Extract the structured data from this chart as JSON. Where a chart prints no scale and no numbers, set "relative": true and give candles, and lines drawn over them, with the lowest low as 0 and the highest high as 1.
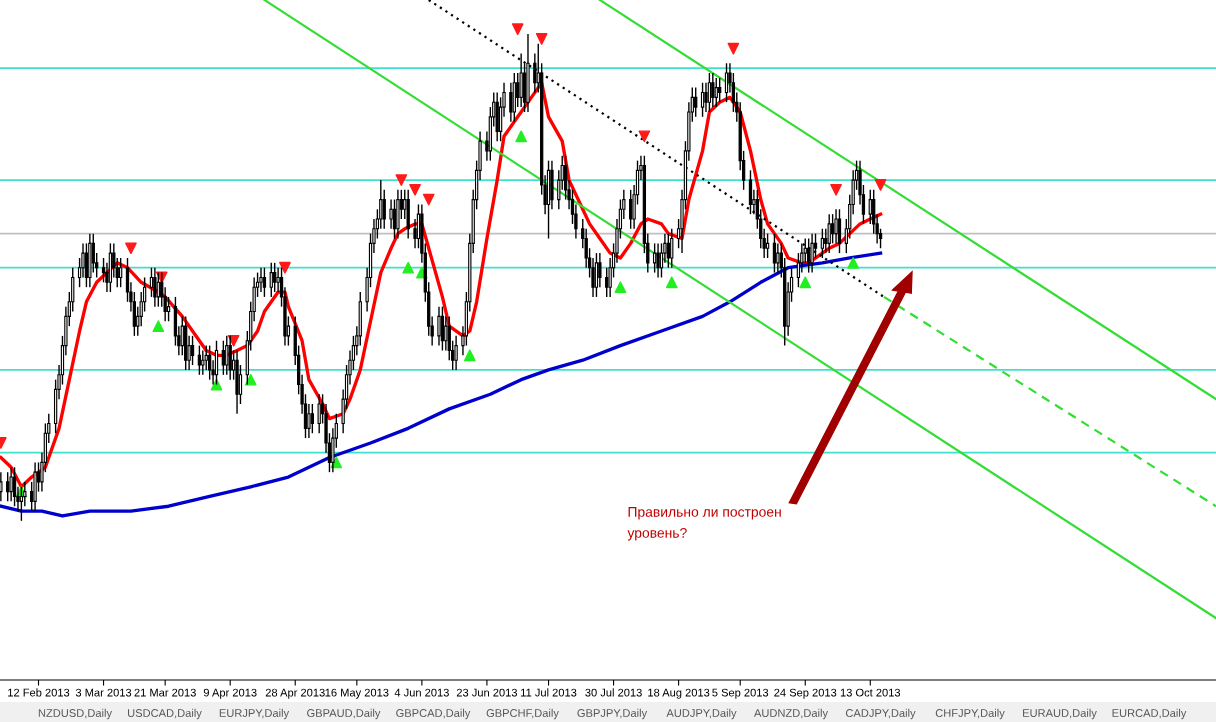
{
  "chart_data": {
    "type": "candlestick",
    "relative": true,
    "tick_labels": "x",
    "x": [
      "2013-02-01",
      "2013-02-03",
      "2013-02-04",
      "2013-02-05",
      "2013-02-06",
      "2013-02-07",
      "2013-02-08",
      "2013-02-10",
      "2013-02-11",
      "2013-02-12",
      "2013-02-13",
      "2013-02-14",
      "2013-02-15",
      "2013-02-17",
      "2013-02-18",
      "2013-02-19",
      "2013-02-20",
      "2013-02-21",
      "2013-02-22",
      "2013-02-24",
      "2013-02-25",
      "2013-02-26",
      "2013-02-27",
      "2013-02-28",
      "2013-03-01",
      "2013-03-03",
      "2013-03-04",
      "2013-03-05",
      "2013-03-06",
      "2013-03-07",
      "2013-03-08",
      "2013-03-10",
      "2013-03-11",
      "2013-03-12",
      "2013-03-13",
      "2013-03-14",
      "2013-03-15",
      "2013-03-17",
      "2013-03-18",
      "2013-03-19",
      "2013-03-20",
      "2013-03-21",
      "2013-03-22",
      "2013-03-24",
      "2013-03-25",
      "2013-03-26",
      "2013-03-27",
      "2013-03-28",
      "2013-03-29",
      "2013-03-31",
      "2013-04-01",
      "2013-04-02",
      "2013-04-03",
      "2013-04-04",
      "2013-04-05",
      "2013-04-07",
      "2013-04-08",
      "2013-04-09",
      "2013-04-10",
      "2013-04-11",
      "2013-04-12",
      "2013-04-14",
      "2013-04-15",
      "2013-04-16",
      "2013-04-17",
      "2013-04-18",
      "2013-04-19",
      "2013-04-21",
      "2013-04-22",
      "2013-04-23",
      "2013-04-24",
      "2013-04-25",
      "2013-04-26",
      "2013-04-28",
      "2013-04-29",
      "2013-04-30",
      "2013-05-01",
      "2013-05-02",
      "2013-05-03",
      "2013-05-05",
      "2013-05-06",
      "2013-05-07",
      "2013-05-08",
      "2013-05-09",
      "2013-05-10",
      "2013-05-12",
      "2013-05-13",
      "2013-05-14",
      "2013-05-15",
      "2013-05-16",
      "2013-05-17",
      "2013-05-19",
      "2013-05-20",
      "2013-05-21",
      "2013-05-22",
      "2013-05-23",
      "2013-05-24",
      "2013-05-26",
      "2013-05-27",
      "2013-05-28",
      "2013-05-29",
      "2013-05-30",
      "2013-05-31",
      "2013-06-02",
      "2013-06-03",
      "2013-06-04",
      "2013-06-05",
      "2013-06-06",
      "2013-06-07",
      "2013-06-09",
      "2013-06-10",
      "2013-06-11",
      "2013-06-12",
      "2013-06-13",
      "2013-06-14",
      "2013-06-16",
      "2013-06-17",
      "2013-06-18",
      "2013-06-19",
      "2013-06-20",
      "2013-06-21",
      "2013-06-23",
      "2013-06-24",
      "2013-06-25",
      "2013-06-26",
      "2013-06-27",
      "2013-06-28",
      "2013-06-30",
      "2013-07-01",
      "2013-07-02",
      "2013-07-03",
      "2013-07-04",
      "2013-07-05",
      "2013-07-07",
      "2013-07-08",
      "2013-07-09",
      "2013-07-10",
      "2013-07-11",
      "2013-07-12",
      "2013-07-14",
      "2013-07-15",
      "2013-07-16",
      "2013-07-17",
      "2013-07-18",
      "2013-07-19",
      "2013-07-21",
      "2013-07-22",
      "2013-07-23",
      "2013-07-24",
      "2013-07-25",
      "2013-07-26",
      "2013-07-28",
      "2013-07-29",
      "2013-07-30",
      "2013-07-31",
      "2013-08-01",
      "2013-08-02",
      "2013-08-04",
      "2013-08-05",
      "2013-08-06",
      "2013-08-07",
      "2013-08-08",
      "2013-08-09",
      "2013-08-11",
      "2013-08-12",
      "2013-08-13",
      "2013-08-14",
      "2013-08-15",
      "2013-08-16",
      "2013-08-18",
      "2013-08-19",
      "2013-08-20",
      "2013-08-21",
      "2013-08-22",
      "2013-08-23",
      "2013-08-25",
      "2013-08-26",
      "2013-08-27",
      "2013-08-28",
      "2013-08-29",
      "2013-08-30",
      "2013-09-01",
      "2013-09-02",
      "2013-09-03",
      "2013-09-04",
      "2013-09-05",
      "2013-09-06",
      "2013-09-08",
      "2013-09-09",
      "2013-09-10",
      "2013-09-11",
      "2013-09-12",
      "2013-09-13",
      "2013-09-15",
      "2013-09-16",
      "2013-09-17",
      "2013-09-18",
      "2013-09-19",
      "2013-09-20",
      "2013-09-22",
      "2013-09-23",
      "2013-09-24",
      "2013-09-25",
      "2013-09-26",
      "2013-09-27",
      "2013-09-29",
      "2013-09-30",
      "2013-10-01",
      "2013-10-02",
      "2013-10-03",
      "2013-10-04",
      "2013-10-06",
      "2013-10-07",
      "2013-10-08",
      "2013-10-09",
      "2013-10-10",
      "2013-10-11",
      "2013-10-13",
      "2013-10-14",
      "2013-10-15",
      "2013-10-16"
    ],
    "ohlc": [
      [
        0.06,
        0.1,
        0.04,
        0.08
      ],
      [
        0.08,
        0.1,
        0.04,
        0.06
      ],
      [
        0.06,
        0.11,
        0.04,
        0.09
      ],
      [
        0.09,
        0.11,
        0.03,
        0.05
      ],
      [
        0.05,
        0.07,
        0.02,
        0.04
      ],
      [
        0.04,
        0.07,
        0.0,
        0.05
      ],
      [
        0.05,
        0.08,
        0.03,
        0.06
      ],
      [
        0.06,
        0.08,
        0.02,
        0.04
      ],
      [
        0.04,
        0.12,
        0.02,
        0.1
      ],
      [
        0.1,
        0.12,
        0.06,
        0.08
      ],
      [
        0.08,
        0.14,
        0.06,
        0.12
      ],
      [
        0.12,
        0.2,
        0.1,
        0.18
      ],
      [
        0.18,
        0.22,
        0.16,
        0.2
      ],
      [
        0.2,
        0.29,
        0.18,
        0.27
      ],
      [
        0.27,
        0.32,
        0.25,
        0.3
      ],
      [
        0.3,
        0.38,
        0.28,
        0.36
      ],
      [
        0.36,
        0.44,
        0.34,
        0.42
      ],
      [
        0.42,
        0.47,
        0.4,
        0.45
      ],
      [
        0.45,
        0.52,
        0.43,
        0.5
      ],
      [
        0.5,
        0.54,
        0.48,
        0.52
      ],
      [
        0.52,
        0.57,
        0.5,
        0.55
      ],
      [
        0.55,
        0.57,
        0.48,
        0.5
      ],
      [
        0.5,
        0.59,
        0.48,
        0.57
      ],
      [
        0.57,
        0.59,
        0.51,
        0.53
      ],
      [
        0.53,
        0.55,
        0.5,
        0.52
      ],
      [
        0.52,
        0.54,
        0.49,
        0.51
      ],
      [
        0.51,
        0.53,
        0.47,
        0.49
      ],
      [
        0.49,
        0.57,
        0.47,
        0.55
      ],
      [
        0.55,
        0.57,
        0.5,
        0.52
      ],
      [
        0.52,
        0.54,
        0.48,
        0.5
      ],
      [
        0.5,
        0.54,
        0.48,
        0.52
      ],
      [
        0.52,
        0.54,
        0.45,
        0.47
      ],
      [
        0.47,
        0.49,
        0.43,
        0.45
      ],
      [
        0.45,
        0.47,
        0.38,
        0.4
      ],
      [
        0.4,
        0.44,
        0.38,
        0.42
      ],
      [
        0.42,
        0.47,
        0.4,
        0.45
      ],
      [
        0.45,
        0.5,
        0.43,
        0.48
      ],
      [
        0.48,
        0.52,
        0.46,
        0.5
      ],
      [
        0.5,
        0.52,
        0.44,
        0.46
      ],
      [
        0.46,
        0.51,
        0.44,
        0.49
      ],
      [
        0.49,
        0.51,
        0.44,
        0.46
      ],
      [
        0.46,
        0.48,
        0.41,
        0.43
      ],
      [
        0.43,
        0.46,
        0.41,
        0.44
      ],
      [
        0.44,
        0.46,
        0.36,
        0.38
      ],
      [
        0.38,
        0.4,
        0.34,
        0.36
      ],
      [
        0.36,
        0.42,
        0.34,
        0.4
      ],
      [
        0.4,
        0.42,
        0.31,
        0.33
      ],
      [
        0.33,
        0.38,
        0.31,
        0.36
      ],
      [
        0.36,
        0.38,
        0.32,
        0.34
      ],
      [
        0.34,
        0.36,
        0.3,
        0.32
      ],
      [
        0.32,
        0.35,
        0.3,
        0.33
      ],
      [
        0.33,
        0.36,
        0.31,
        0.34
      ],
      [
        0.34,
        0.36,
        0.29,
        0.31
      ],
      [
        0.31,
        0.33,
        0.28,
        0.3
      ],
      [
        0.3,
        0.37,
        0.28,
        0.35
      ],
      [
        0.35,
        0.37,
        0.3,
        0.32
      ],
      [
        0.32,
        0.38,
        0.3,
        0.36
      ],
      [
        0.36,
        0.38,
        0.29,
        0.31
      ],
      [
        0.31,
        0.35,
        0.29,
        0.33
      ],
      [
        0.33,
        0.35,
        0.22,
        0.26
      ],
      [
        0.26,
        0.32,
        0.24,
        0.3
      ],
      [
        0.3,
        0.39,
        0.28,
        0.37
      ],
      [
        0.37,
        0.45,
        0.35,
        0.43
      ],
      [
        0.43,
        0.5,
        0.41,
        0.48
      ],
      [
        0.48,
        0.51,
        0.46,
        0.49
      ],
      [
        0.49,
        0.52,
        0.47,
        0.5
      ],
      [
        0.5,
        0.52,
        0.46,
        0.48
      ],
      [
        0.48,
        0.53,
        0.46,
        0.51
      ],
      [
        0.51,
        0.53,
        0.47,
        0.49
      ],
      [
        0.49,
        0.52,
        0.47,
        0.5
      ],
      [
        0.5,
        0.52,
        0.44,
        0.46
      ],
      [
        0.46,
        0.48,
        0.36,
        0.38
      ],
      [
        0.38,
        0.42,
        0.36,
        0.4
      ],
      [
        0.4,
        0.42,
        0.32,
        0.34
      ],
      [
        0.34,
        0.36,
        0.26,
        0.28
      ],
      [
        0.28,
        0.3,
        0.22,
        0.24
      ],
      [
        0.24,
        0.26,
        0.17,
        0.19
      ],
      [
        0.19,
        0.24,
        0.17,
        0.22
      ],
      [
        0.22,
        0.24,
        0.18,
        0.2
      ],
      [
        0.2,
        0.26,
        0.18,
        0.24
      ],
      [
        0.24,
        0.26,
        0.2,
        0.22
      ],
      [
        0.22,
        0.24,
        0.14,
        0.16
      ],
      [
        0.16,
        0.18,
        0.1,
        0.12
      ],
      [
        0.12,
        0.19,
        0.1,
        0.17
      ],
      [
        0.17,
        0.22,
        0.15,
        0.2
      ],
      [
        0.2,
        0.27,
        0.18,
        0.25
      ],
      [
        0.25,
        0.32,
        0.23,
        0.3
      ],
      [
        0.3,
        0.35,
        0.28,
        0.33
      ],
      [
        0.33,
        0.38,
        0.31,
        0.36
      ],
      [
        0.36,
        0.4,
        0.34,
        0.38
      ],
      [
        0.38,
        0.47,
        0.36,
        0.45
      ],
      [
        0.45,
        0.52,
        0.43,
        0.5
      ],
      [
        0.5,
        0.59,
        0.48,
        0.57
      ],
      [
        0.57,
        0.62,
        0.55,
        0.6
      ],
      [
        0.6,
        0.64,
        0.58,
        0.62
      ],
      [
        0.62,
        0.7,
        0.6,
        0.66
      ],
      [
        0.66,
        0.68,
        0.6,
        0.62
      ],
      [
        0.62,
        0.66,
        0.6,
        0.64
      ],
      [
        0.64,
        0.66,
        0.58,
        0.6
      ],
      [
        0.6,
        0.68,
        0.58,
        0.66
      ],
      [
        0.66,
        0.68,
        0.62,
        0.64
      ],
      [
        0.64,
        0.68,
        0.62,
        0.66
      ],
      [
        0.66,
        0.68,
        0.58,
        0.6
      ],
      [
        0.6,
        0.62,
        0.56,
        0.58
      ],
      [
        0.58,
        0.65,
        0.56,
        0.63
      ],
      [
        0.63,
        0.65,
        0.53,
        0.55
      ],
      [
        0.55,
        0.57,
        0.45,
        0.47
      ],
      [
        0.47,
        0.49,
        0.38,
        0.4
      ],
      [
        0.4,
        0.42,
        0.36,
        0.38
      ],
      [
        0.38,
        0.44,
        0.36,
        0.42
      ],
      [
        0.42,
        0.44,
        0.35,
        0.37
      ],
      [
        0.37,
        0.42,
        0.35,
        0.4
      ],
      [
        0.4,
        0.42,
        0.33,
        0.35
      ],
      [
        0.35,
        0.37,
        0.31,
        0.33
      ],
      [
        0.33,
        0.38,
        0.31,
        0.36
      ],
      [
        0.36,
        0.4,
        0.34,
        0.38
      ],
      [
        0.38,
        0.47,
        0.36,
        0.45
      ],
      [
        0.45,
        0.59,
        0.43,
        0.57
      ],
      [
        0.57,
        0.68,
        0.55,
        0.66
      ],
      [
        0.66,
        0.74,
        0.64,
        0.72
      ],
      [
        0.72,
        0.8,
        0.7,
        0.78
      ],
      [
        0.78,
        0.8,
        0.74,
        0.76
      ],
      [
        0.76,
        0.85,
        0.74,
        0.83
      ],
      [
        0.83,
        0.88,
        0.81,
        0.86
      ],
      [
        0.86,
        0.88,
        0.78,
        0.8
      ],
      [
        0.8,
        0.87,
        0.78,
        0.85
      ],
      [
        0.85,
        0.9,
        0.83,
        0.88
      ],
      [
        0.88,
        0.9,
        0.82,
        0.84
      ],
      [
        0.84,
        0.92,
        0.82,
        0.9
      ],
      [
        0.9,
        0.92,
        0.85,
        0.87
      ],
      [
        0.87,
        0.96,
        0.85,
        0.92
      ],
      [
        0.92,
        0.94,
        0.84,
        0.86
      ],
      [
        0.86,
        1.0,
        0.84,
        0.94
      ],
      [
        0.94,
        0.96,
        0.88,
        0.9
      ],
      [
        0.9,
        0.98,
        0.88,
        0.92
      ],
      [
        0.92,
        0.94,
        0.67,
        0.69
      ],
      [
        0.69,
        0.71,
        0.63,
        0.65
      ],
      [
        0.65,
        0.74,
        0.58,
        0.72
      ],
      [
        0.72,
        0.74,
        0.64,
        0.66
      ],
      [
        0.66,
        0.72,
        0.64,
        0.7
      ],
      [
        0.7,
        0.75,
        0.68,
        0.73
      ],
      [
        0.73,
        0.75,
        0.66,
        0.68
      ],
      [
        0.68,
        0.7,
        0.64,
        0.66
      ],
      [
        0.66,
        0.68,
        0.61,
        0.63
      ],
      [
        0.63,
        0.65,
        0.58,
        0.6
      ],
      [
        0.6,
        0.62,
        0.56,
        0.58
      ],
      [
        0.58,
        0.6,
        0.52,
        0.54
      ],
      [
        0.54,
        0.56,
        0.5,
        0.52
      ],
      [
        0.52,
        0.54,
        0.46,
        0.48
      ],
      [
        0.48,
        0.55,
        0.46,
        0.53
      ],
      [
        0.53,
        0.55,
        0.48,
        0.5
      ],
      [
        0.5,
        0.52,
        0.46,
        0.48
      ],
      [
        0.48,
        0.54,
        0.46,
        0.52
      ],
      [
        0.52,
        0.57,
        0.5,
        0.55
      ],
      [
        0.55,
        0.62,
        0.53,
        0.6
      ],
      [
        0.6,
        0.66,
        0.58,
        0.64
      ],
      [
        0.64,
        0.68,
        0.62,
        0.66
      ],
      [
        0.66,
        0.68,
        0.6,
        0.62
      ],
      [
        0.62,
        0.69,
        0.6,
        0.67
      ],
      [
        0.67,
        0.74,
        0.65,
        0.72
      ],
      [
        0.72,
        0.75,
        0.7,
        0.73
      ],
      [
        0.73,
        0.75,
        0.55,
        0.57
      ],
      [
        0.57,
        0.59,
        0.51,
        0.53
      ],
      [
        0.53,
        0.57,
        0.51,
        0.55
      ],
      [
        0.55,
        0.57,
        0.5,
        0.52
      ],
      [
        0.52,
        0.57,
        0.5,
        0.55
      ],
      [
        0.55,
        0.59,
        0.53,
        0.57
      ],
      [
        0.57,
        0.59,
        0.52,
        0.54
      ],
      [
        0.54,
        0.6,
        0.52,
        0.58
      ],
      [
        0.58,
        0.62,
        0.56,
        0.6
      ],
      [
        0.6,
        0.68,
        0.55,
        0.66
      ],
      [
        0.66,
        0.78,
        0.64,
        0.76
      ],
      [
        0.76,
        0.86,
        0.74,
        0.84
      ],
      [
        0.84,
        0.89,
        0.82,
        0.87
      ],
      [
        0.87,
        0.89,
        0.83,
        0.85
      ],
      [
        0.85,
        0.9,
        0.83,
        0.88
      ],
      [
        0.88,
        0.9,
        0.84,
        0.86
      ],
      [
        0.86,
        0.92,
        0.84,
        0.9
      ],
      [
        0.9,
        0.92,
        0.85,
        0.87
      ],
      [
        0.87,
        0.91,
        0.85,
        0.89
      ],
      [
        0.89,
        0.91,
        0.86,
        0.88
      ],
      [
        0.88,
        0.94,
        0.86,
        0.92
      ],
      [
        0.92,
        0.94,
        0.88,
        0.9
      ],
      [
        0.9,
        0.92,
        0.84,
        0.86
      ],
      [
        0.86,
        0.88,
        0.82,
        0.84
      ],
      [
        0.84,
        0.86,
        0.72,
        0.74
      ],
      [
        0.74,
        0.76,
        0.68,
        0.7
      ],
      [
        0.7,
        0.72,
        0.63,
        0.65
      ],
      [
        0.65,
        0.68,
        0.63,
        0.66
      ],
      [
        0.66,
        0.68,
        0.6,
        0.62
      ],
      [
        0.62,
        0.64,
        0.56,
        0.58
      ],
      [
        0.58,
        0.6,
        0.54,
        0.56
      ],
      [
        0.56,
        0.59,
        0.54,
        0.57
      ],
      [
        0.57,
        0.59,
        0.51,
        0.53
      ],
      [
        0.53,
        0.57,
        0.51,
        0.55
      ],
      [
        0.55,
        0.57,
        0.5,
        0.52
      ],
      [
        0.52,
        0.54,
        0.36,
        0.4
      ],
      [
        0.4,
        0.49,
        0.38,
        0.47
      ],
      [
        0.47,
        0.52,
        0.45,
        0.5
      ],
      [
        0.5,
        0.55,
        0.48,
        0.53
      ],
      [
        0.53,
        0.57,
        0.51,
        0.55
      ],
      [
        0.55,
        0.58,
        0.53,
        0.56
      ],
      [
        0.56,
        0.58,
        0.51,
        0.53
      ],
      [
        0.53,
        0.59,
        0.51,
        0.57
      ],
      [
        0.57,
        0.59,
        0.54,
        0.56
      ],
      [
        0.56,
        0.6,
        0.54,
        0.58
      ],
      [
        0.58,
        0.6,
        0.55,
        0.57
      ],
      [
        0.57,
        0.63,
        0.55,
        0.61
      ],
      [
        0.61,
        0.63,
        0.57,
        0.59
      ],
      [
        0.59,
        0.64,
        0.57,
        0.62
      ],
      [
        0.62,
        0.64,
        0.55,
        0.57
      ],
      [
        0.57,
        0.62,
        0.55,
        0.6
      ],
      [
        0.6,
        0.67,
        0.58,
        0.65
      ],
      [
        0.65,
        0.72,
        0.63,
        0.7
      ],
      [
        0.7,
        0.74,
        0.68,
        0.72
      ],
      [
        0.72,
        0.74,
        0.65,
        0.67
      ],
      [
        0.67,
        0.69,
        0.61,
        0.63
      ],
      [
        0.63,
        0.68,
        0.61,
        0.66
      ],
      [
        0.66,
        0.68,
        0.59,
        0.61
      ],
      [
        0.61,
        0.63,
        0.57,
        0.59
      ],
      [
        0.59,
        0.6,
        0.56,
        0.58
      ]
    ],
    "xlim": [
      "2013-01-31T18:00",
      "2014-01-22"
    ],
    "xticks": [
      {
        "value": "2013-02-12",
        "label": "12 Feb 2013"
      },
      {
        "value": "2013-03-03",
        "label": "3 Mar 2013"
      },
      {
        "value": "2013-03-21",
        "label": "21 Mar 2013"
      },
      {
        "value": "2013-04-09",
        "label": "9 Apr 2013"
      },
      {
        "value": "2013-04-28",
        "label": "28 Apr 2013"
      },
      {
        "value": "2013-05-16",
        "label": "16 May 2013"
      },
      {
        "value": "2013-06-04",
        "label": "4 Jun 2013"
      },
      {
        "value": "2013-06-23",
        "label": "23 Jun 2013"
      },
      {
        "value": "2013-07-11",
        "label": "11 Jul 2013"
      },
      {
        "value": "2013-07-30",
        "label": "30 Jul 2013"
      },
      {
        "value": "2013-08-18",
        "label": "18 Aug 2013"
      },
      {
        "value": "2013-09-05",
        "label": "5 Sep 2013"
      },
      {
        "value": "2013-09-24",
        "label": "24 Sep 2013"
      },
      {
        "value": "2013-10-13",
        "label": "13 Oct 2013"
      }
    ],
    "series": [
      {
        "type": "line",
        "color": "#ff0000",
        "line_style": "solid",
        "x": [
          "2013-02-01",
          "2013-02-04",
          "2013-02-07",
          "2013-02-10",
          "2013-02-14",
          "2013-02-18",
          "2013-02-21",
          "2013-02-24",
          "2013-02-26",
          "2013-03-01",
          "2013-03-04",
          "2013-03-07",
          "2013-03-10",
          "2013-03-14",
          "2013-03-19",
          "2013-03-21",
          "2013-03-26",
          "2013-03-31",
          "2013-04-02",
          "2013-04-05",
          "2013-04-08",
          "2013-04-11",
          "2013-04-14",
          "2013-04-17",
          "2013-04-19",
          "2013-04-23",
          "2013-04-25",
          "2013-04-26",
          "2013-04-30",
          "2013-05-02",
          "2013-05-06",
          "2013-05-08",
          "2013-05-12",
          "2013-05-14",
          "2013-05-17",
          "2013-05-20",
          "2013-05-23",
          "2013-05-26",
          "2013-05-28",
          "2013-05-30",
          "2013-06-02",
          "2013-06-04",
          "2013-06-06",
          "2013-06-10",
          "2013-06-12",
          "2013-06-16",
          "2013-06-18",
          "2013-06-20",
          "2013-06-23",
          "2013-06-26",
          "2013-06-28",
          "2013-07-02",
          "2013-07-04",
          "2013-07-08",
          "2013-07-09",
          "2013-07-11",
          "2013-07-15",
          "2013-07-17",
          "2013-07-21",
          "2013-07-23",
          "2013-07-26",
          "2013-07-29",
          "2013-08-01",
          "2013-08-04",
          "2013-08-07",
          "2013-08-09",
          "2013-08-13",
          "2013-08-15",
          "2013-08-19",
          "2013-08-21",
          "2013-08-25",
          "2013-08-27",
          "2013-08-30",
          "2013-09-02",
          "2013-09-05",
          "2013-09-08",
          "2013-09-11",
          "2013-09-13",
          "2013-09-17",
          "2013-09-19",
          "2013-09-23",
          "2013-09-25",
          "2013-09-29",
          "2013-10-01",
          "2013-10-04",
          "2013-10-07",
          "2013-10-10",
          "2013-10-13",
          "2013-10-16"
        ],
        "values": [
          0.13,
          0.11,
          0.07,
          0.09,
          0.11,
          0.19,
          0.29,
          0.39,
          0.45,
          0.49,
          0.51,
          0.53,
          0.52,
          0.49,
          0.47,
          0.46,
          0.42,
          0.37,
          0.35,
          0.34,
          0.34,
          0.35,
          0.36,
          0.39,
          0.43,
          0.47,
          0.47,
          0.44,
          0.37,
          0.29,
          0.24,
          0.21,
          0.22,
          0.25,
          0.31,
          0.41,
          0.51,
          0.56,
          0.59,
          0.6,
          0.61,
          0.61,
          0.56,
          0.46,
          0.4,
          0.38,
          0.39,
          0.45,
          0.58,
          0.7,
          0.79,
          0.83,
          0.85,
          0.89,
          0.9,
          0.83,
          0.78,
          0.7,
          0.64,
          0.61,
          0.58,
          0.55,
          0.54,
          0.57,
          0.61,
          0.62,
          0.61,
          0.59,
          0.58,
          0.66,
          0.76,
          0.84,
          0.86,
          0.87,
          0.84,
          0.76,
          0.66,
          0.61,
          0.57,
          0.54,
          0.53,
          0.53,
          0.55,
          0.56,
          0.57,
          0.59,
          0.61,
          0.62,
          0.63
        ]
      },
      {
        "type": "line",
        "color": "#0000cc",
        "line_style": "solid",
        "x": [
          "2013-02-01",
          "2013-02-07",
          "2013-02-13",
          "2013-02-19",
          "2013-02-27",
          "2013-03-11",
          "2013-03-22",
          "2013-04-03",
          "2013-04-15",
          "2013-04-26",
          "2013-05-08",
          "2013-05-20",
          "2013-05-31",
          "2013-06-12",
          "2013-06-24",
          "2013-07-03",
          "2013-07-11",
          "2013-07-21",
          "2013-08-01",
          "2013-08-13",
          "2013-08-25",
          "2013-09-02",
          "2013-09-11",
          "2013-09-19",
          "2013-09-29",
          "2013-10-07",
          "2013-10-16"
        ],
        "values": [
          0.03,
          0.02,
          0.02,
          0.01,
          0.02,
          0.02,
          0.03,
          0.05,
          0.07,
          0.09,
          0.13,
          0.16,
          0.19,
          0.23,
          0.26,
          0.29,
          0.31,
          0.33,
          0.36,
          0.39,
          0.42,
          0.45,
          0.49,
          0.52,
          0.53,
          0.54,
          0.55
        ]
      },
      {
        "type": "line",
        "color": "#33dd33",
        "line_style": "solid",
        "x": [
          "2013-04-19",
          "2014-01-22"
        ],
        "values": [
          1.07,
          -0.2
        ]
      },
      {
        "type": "line",
        "color": "#33dd33",
        "line_style": "solid",
        "x": [
          "2013-07-26",
          "2014-01-22"
        ],
        "values": [
          1.07,
          0.25
        ]
      },
      {
        "type": "line",
        "color": "#000000",
        "line_style": "dotted",
        "x": [
          "2013-06-06",
          "2013-10-17"
        ],
        "values": [
          1.07,
          0.46
        ]
      },
      {
        "type": "line",
        "color": "#33dd33",
        "line_style": "dashed",
        "x": [
          "2013-10-17",
          "2014-01-22"
        ],
        "values": [
          0.46,
          0.03
        ]
      },
      {
        "type": "scatter",
        "color": "#ff1a1a",
        "marker": "triangle_down",
        "x": [
          "2013-02-01",
          "2013-03-11",
          "2013-03-20",
          "2013-04-10",
          "2013-04-25",
          "2013-05-29",
          "2013-06-02",
          "2013-06-06",
          "2013-07-02",
          "2013-07-09",
          "2013-08-08",
          "2013-09-03",
          "2013-10-03",
          "2013-10-16"
        ],
        "values": [
          0.16,
          0.56,
          0.5,
          0.37,
          0.52,
          0.7,
          0.68,
          0.66,
          1.01,
          0.99,
          0.79,
          0.97,
          0.68,
          0.69
        ]
      },
      {
        "type": "scatter",
        "color": "#22ee22",
        "marker": "triangle",
        "x": [
          "2013-02-07",
          "2013-03-19",
          "2013-04-05",
          "2013-04-15",
          "2013-05-10",
          "2013-05-31",
          "2013-06-04",
          "2013-06-18",
          "2013-07-03",
          "2013-08-01",
          "2013-08-16",
          "2013-09-24",
          "2013-10-08"
        ],
        "values": [
          0.06,
          0.4,
          0.28,
          0.29,
          0.12,
          0.52,
          0.51,
          0.34,
          0.79,
          0.48,
          0.49,
          0.49,
          0.53
        ]
      }
    ],
    "ref_lines": [
      {
        "axis": "y",
        "value": 0.93,
        "color": "#40e0d0"
      },
      {
        "axis": "y",
        "value": 0.7,
        "color": "#40e0d0"
      },
      {
        "axis": "y",
        "value": 0.52,
        "color": "#40e0d0"
      },
      {
        "axis": "y",
        "value": 0.31,
        "color": "#40e0d0"
      },
      {
        "axis": "y",
        "value": 0.14,
        "color": "#40e0d0"
      },
      {
        "axis": "y",
        "value": 0.59,
        "color": "#c0c0c0"
      }
    ],
    "annotations": [
      "Правильно ли построен\nуровень?",
      "NZDUSD,Daily",
      "USDCAD,Daily",
      "EURJPY,Daily",
      "GBPAUD,Daily",
      "GBPCAD,Daily",
      "GBPCHF,Daily",
      "GBPJPY,Daily",
      "AUDJPY,Daily",
      "AUDNZD,Daily",
      "CADJPY,Daily",
      "CHFJPY,Daily",
      "EURAUD,Daily",
      "EURCAD,Daily"
    ]
  }
}
